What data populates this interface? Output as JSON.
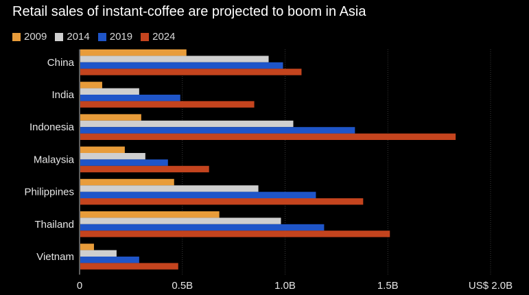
{
  "title": "Retail sales of instant-coffee are projected to boom in Asia",
  "chart_data": {
    "type": "bar",
    "orientation": "horizontal",
    "title": "Retail sales of instant-coffee are projected to boom in Asia",
    "categories": [
      "China",
      "India",
      "Indonesia",
      "Malaysia",
      "Philippines",
      "Thailand",
      "Vietnam"
    ],
    "series": [
      {
        "name": "2009",
        "color": "#e89c3a",
        "values": [
          0.52,
          0.11,
          0.3,
          0.22,
          0.46,
          0.68,
          0.07
        ]
      },
      {
        "name": "2014",
        "color": "#cfcfcf",
        "values": [
          0.92,
          0.29,
          1.04,
          0.32,
          0.87,
          0.98,
          0.18
        ]
      },
      {
        "name": "2019",
        "color": "#1f55c8",
        "values": [
          0.99,
          0.49,
          1.34,
          0.43,
          1.15,
          1.19,
          0.29
        ]
      },
      {
        "name": "2024",
        "color": "#c4441e",
        "values": [
          1.08,
          0.85,
          1.83,
          0.63,
          1.38,
          1.51,
          0.48
        ]
      }
    ],
    "xlim": [
      0,
      2.0
    ],
    "xticks": [
      0,
      0.5,
      1.0,
      1.5,
      2.0
    ],
    "xtick_labels": [
      "0",
      "0.5B",
      "1.0B",
      "1.5B",
      "US$ 2.0B"
    ],
    "grid": "vertical",
    "legend": "top-left"
  }
}
